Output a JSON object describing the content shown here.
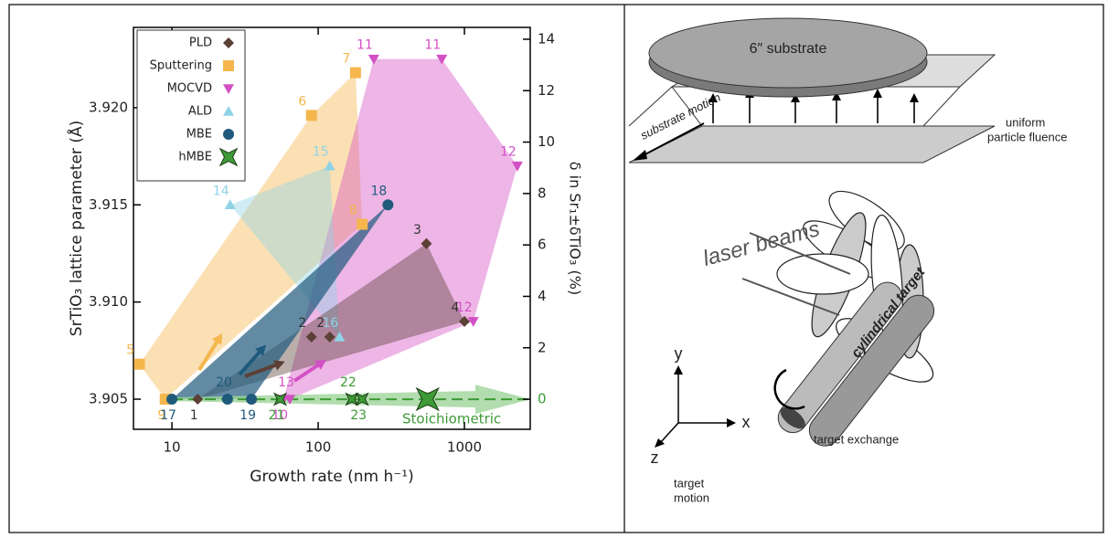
{
  "chart_data": {
    "type": "scatter",
    "xlabel": "Growth rate (nm h⁻¹)",
    "ylabel": "SrTiO₃ lattice parameter (Å)",
    "y2label": "δ in Sr₁±δTiO₃ (%)",
    "annotation": "Stoichiometric",
    "xscale": "log",
    "xlim": [
      5.46,
      2818
    ],
    "xticks": [
      10,
      100,
      1000
    ],
    "ylim": [
      3.90345,
      3.92413
    ],
    "yticks": [
      3.905,
      {
        "value": 3.91,
        "label": "3.910"
      },
      3.915,
      {
        "value": 3.92,
        "label": "3.920"
      }
    ],
    "y2lim": [
      -1.17,
      14.46
    ],
    "y2ticks": [
      0,
      2,
      4,
      6,
      8,
      10,
      12,
      14
    ],
    "legend": "upper left",
    "series": [
      {
        "name": "PLD",
        "color": "#5b4036",
        "marker": "diamond",
        "x": [
          15,
          90,
          120,
          550,
          1000
        ],
        "values": [
          3.905,
          3.9082,
          3.9082,
          3.913,
          3.909
        ],
        "labels": [
          "1",
          "2",
          "2",
          "3",
          "4"
        ]
      },
      {
        "name": "Sputtering",
        "color": "#f5b64c",
        "marker": "square",
        "x": [
          6,
          90,
          180,
          200,
          9
        ],
        "values": [
          3.9068,
          3.9196,
          3.9218,
          3.914,
          3.905
        ],
        "labels": [
          "5",
          "6",
          "7",
          "8",
          "9"
        ]
      },
      {
        "name": "MOCVD",
        "color": "#d350c4",
        "marker": "triangle-down",
        "x": [
          58,
          64,
          240,
          700,
          2300,
          1150
        ],
        "values": [
          3.905,
          3.905,
          3.9225,
          3.9225,
          3.917,
          3.909
        ],
        "labels": [
          "10",
          "13",
          "11",
          "11",
          "12",
          "12"
        ]
      },
      {
        "name": "ALD",
        "color": "#8fd3e6",
        "marker": "triangle-up",
        "x": [
          25,
          120,
          140
        ],
        "values": [
          3.915,
          3.917,
          3.9082
        ],
        "labels": [
          "14",
          "15",
          "16"
        ]
      },
      {
        "name": "MBE",
        "color": "#1f5a7c",
        "marker": "circle",
        "x": [
          10,
          300,
          35,
          24
        ],
        "values": [
          3.905,
          3.915,
          3.905,
          3.905
        ],
        "labels": [
          "17",
          "18",
          "19",
          "20"
        ]
      },
      {
        "name": "hMBE",
        "color": "#3d9a36",
        "marker": "star",
        "x": [
          55,
          170,
          200,
          560
        ],
        "values": [
          3.905,
          3.905,
          3.905,
          3.905
        ],
        "labels": [
          "21",
          "22",
          "23",
          null
        ]
      }
    ]
  },
  "diagram": {
    "substrate": "6″ substrate",
    "substrate_motion": "substrate motion",
    "fluence": [
      "uniform",
      "particle fluence"
    ],
    "laser": "laser beams",
    "target": "cylindrical target",
    "axes": [
      "y",
      "x",
      "z"
    ],
    "exchange": "target exchange",
    "target_motion": [
      "target",
      "motion"
    ]
  }
}
